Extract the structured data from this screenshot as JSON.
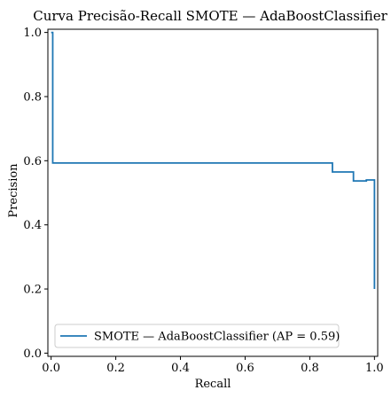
{
  "chart_data": {
    "type": "line",
    "title": "Curva Precisão-Recall SMOTE — AdaBoostClassifier",
    "xlabel": "Recall",
    "ylabel": "Precision",
    "xlim": [
      -0.01,
      1.01
    ],
    "ylim": [
      -0.01,
      1.01
    ],
    "xticks": [
      0.0,
      0.2,
      0.4,
      0.6,
      0.8,
      1.0
    ],
    "xtick_labels": [
      "0.0",
      "0.2",
      "0.4",
      "0.6",
      "0.8",
      "1.0"
    ],
    "yticks": [
      0.0,
      0.2,
      0.4,
      0.6,
      0.8,
      1.0
    ],
    "ytick_labels": [
      "0.0",
      "0.2",
      "0.4",
      "0.6",
      "0.8",
      "1.0"
    ],
    "grid": false,
    "legend_position": "lower-left",
    "series": [
      {
        "name": "SMOTE — AdaBoostClassifier (AP = 0.59)",
        "color": "#1f77b4",
        "drawstyle": "steps-post",
        "x": [
          0.0,
          0.0,
          0.005,
          0.005,
          0.87,
          0.87,
          0.935,
          0.935,
          0.975,
          0.975,
          0.99,
          0.99,
          1.0,
          1.0
        ],
        "y": [
          1.0,
          1.0,
          1.0,
          0.593,
          0.593,
          0.565,
          0.565,
          0.537,
          0.537,
          0.54,
          0.54,
          0.54,
          0.54,
          0.2
        ]
      }
    ]
  }
}
